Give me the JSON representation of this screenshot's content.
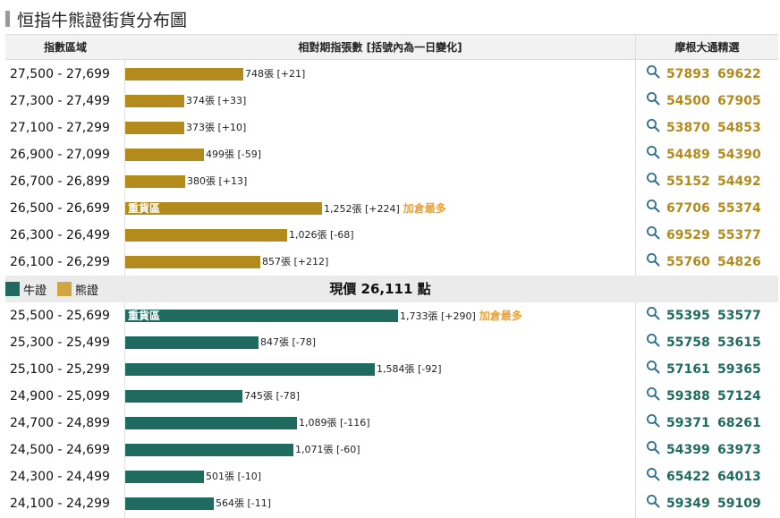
{
  "title": "恒指牛熊證街貨分布圖",
  "header": {
    "col_range": "指數區域",
    "col_qty": "相對期指張數 [括號內為一日變化]",
    "col_links": "摩根大通精選"
  },
  "legend": {
    "bull": "牛證",
    "bear": "熊證"
  },
  "current_price": "現價 26,111 點",
  "heavy_label": "重貨區",
  "most_label": "加倉最多",
  "colors": {
    "bear": "#b38b1c",
    "bull": "#1f6b5f",
    "bear_legend": "#d1a53f",
    "highlight": "#f0a030"
  },
  "icons": {
    "search": "magnifier-icon"
  },
  "chart_data": {
    "type": "bar",
    "orientation": "horizontal",
    "unit": "張",
    "bear_rows": [
      {
        "range": "27,500 - 27,699",
        "value": 748,
        "change": 21,
        "label": "748張 [+21]",
        "codes": [
          "57893",
          "69622"
        ]
      },
      {
        "range": "27,300 - 27,499",
        "value": 374,
        "change": 33,
        "label": "374張 [+33]",
        "codes": [
          "54500",
          "67905"
        ]
      },
      {
        "range": "27,100 - 27,299",
        "value": 373,
        "change": 10,
        "label": "373張 [+10]",
        "codes": [
          "53870",
          "54853"
        ]
      },
      {
        "range": "26,900 - 27,099",
        "value": 499,
        "change": -59,
        "label": "499張 [-59]",
        "codes": [
          "54489",
          "54390"
        ]
      },
      {
        "range": "26,700 - 26,899",
        "value": 380,
        "change": 13,
        "label": "380張 [+13]",
        "codes": [
          "55152",
          "54492"
        ]
      },
      {
        "range": "26,500 - 26,699",
        "value": 1252,
        "change": 224,
        "label": "1,252張 [+224]",
        "codes": [
          "67706",
          "55374"
        ],
        "heavy": true,
        "most": true
      },
      {
        "range": "26,300 - 26,499",
        "value": 1026,
        "change": -68,
        "label": "1,026張 [-68]",
        "codes": [
          "69529",
          "55377"
        ]
      },
      {
        "range": "26,100 - 26,299",
        "value": 857,
        "change": 212,
        "label": "857張 [+212]",
        "codes": [
          "55760",
          "54826"
        ]
      }
    ],
    "bull_rows": [
      {
        "range": "25,500 - 25,699",
        "value": 1733,
        "change": 290,
        "label": "1,733張 [+290]",
        "codes": [
          "55395",
          "53577"
        ],
        "heavy": true,
        "most": true
      },
      {
        "range": "25,300 - 25,499",
        "value": 847,
        "change": -78,
        "label": "847張 [-78]",
        "codes": [
          "55758",
          "53615"
        ]
      },
      {
        "range": "25,100 - 25,299",
        "value": 1584,
        "change": -92,
        "label": "1,584張 [-92]",
        "codes": [
          "57161",
          "59365"
        ]
      },
      {
        "range": "24,900 - 25,099",
        "value": 745,
        "change": -78,
        "label": "745張 [-78]",
        "codes": [
          "59388",
          "57124"
        ]
      },
      {
        "range": "24,700 - 24,899",
        "value": 1089,
        "change": -116,
        "label": "1,089張 [-116]",
        "codes": [
          "59371",
          "68261"
        ]
      },
      {
        "range": "24,500 - 24,699",
        "value": 1071,
        "change": -60,
        "label": "1,071張 [-60]",
        "codes": [
          "54399",
          "63973"
        ]
      },
      {
        "range": "24,300 - 24,499",
        "value": 501,
        "change": -10,
        "label": "501張 [-10]",
        "codes": [
          "65422",
          "64013"
        ]
      },
      {
        "range": "24,100 - 24,299",
        "value": 564,
        "change": -11,
        "label": "564張 [-11]",
        "codes": [
          "59349",
          "59109"
        ]
      }
    ]
  }
}
